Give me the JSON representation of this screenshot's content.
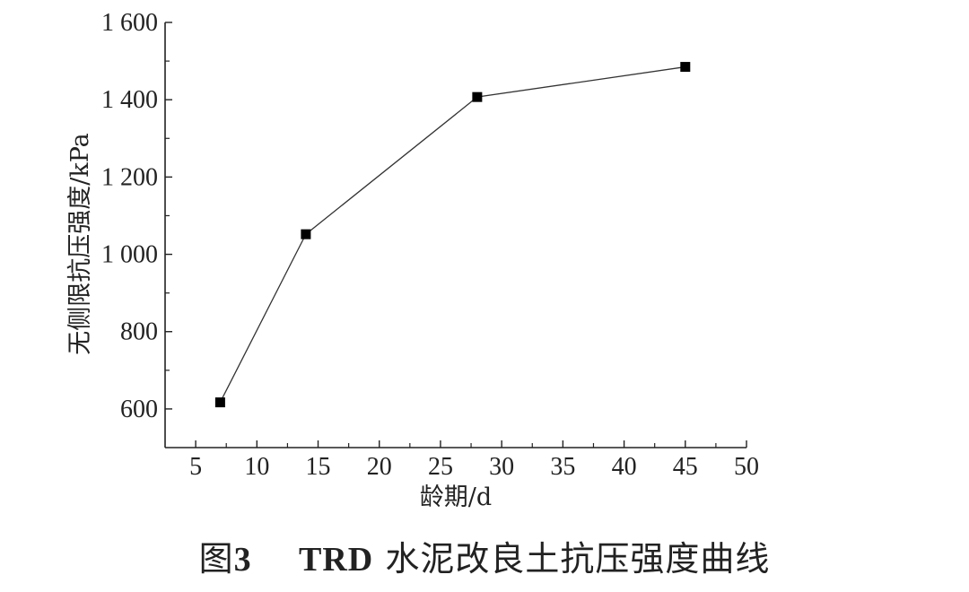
{
  "chart_data": {
    "type": "line",
    "x": [
      7,
      14,
      28,
      45
    ],
    "series": [
      {
        "values": [
          617,
          1052,
          1407,
          1485
        ]
      }
    ],
    "xlabel": "龄期/d",
    "ylabel": "无侧限抗压强度/kPa",
    "xlim": [
      2.5,
      50
    ],
    "ylim": [
      500,
      1600
    ],
    "x_ticks": [
      5,
      10,
      15,
      20,
      25,
      30,
      35,
      40,
      45,
      50
    ],
    "y_ticks": [
      600,
      800,
      1000,
      1200,
      1400,
      1600
    ],
    "y_tick_labels": [
      "600",
      "800",
      "1 000",
      "1 200",
      "1 400",
      "1 600"
    ],
    "marker": "square",
    "line_color": "#333333",
    "marker_color": "#000000",
    "grid": false
  },
  "caption": {
    "prefix": "图",
    "number": "3",
    "bold_text": "TRD",
    "text": "水泥改良土抗压强度曲线"
  }
}
